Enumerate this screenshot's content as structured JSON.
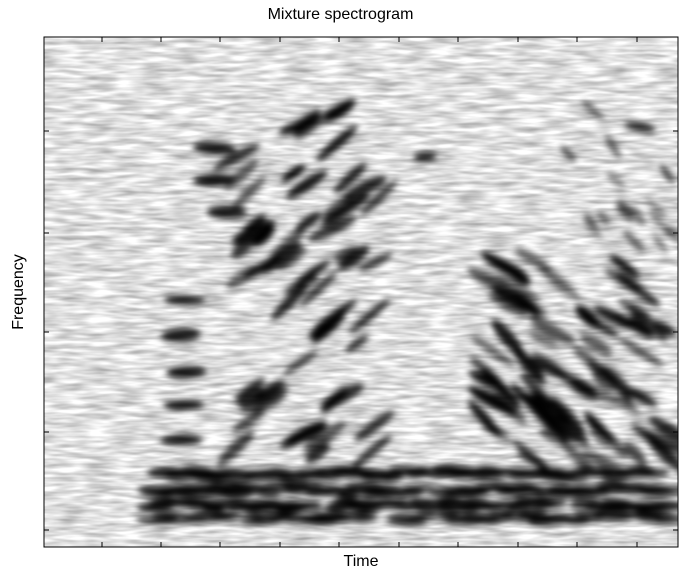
{
  "chart_data": {
    "type": "heatmap",
    "title": "Mixture spectrogram",
    "xlabel": "Time",
    "ylabel": "Frequency",
    "colormap": "grayscale, white = low energy, black = high energy",
    "axis_tick_labels": "none",
    "x_ticks": 11,
    "y_ticks": 5,
    "notes": "Two speech-like bursts with harmonic stripes; lower frequencies strongest"
  }
}
